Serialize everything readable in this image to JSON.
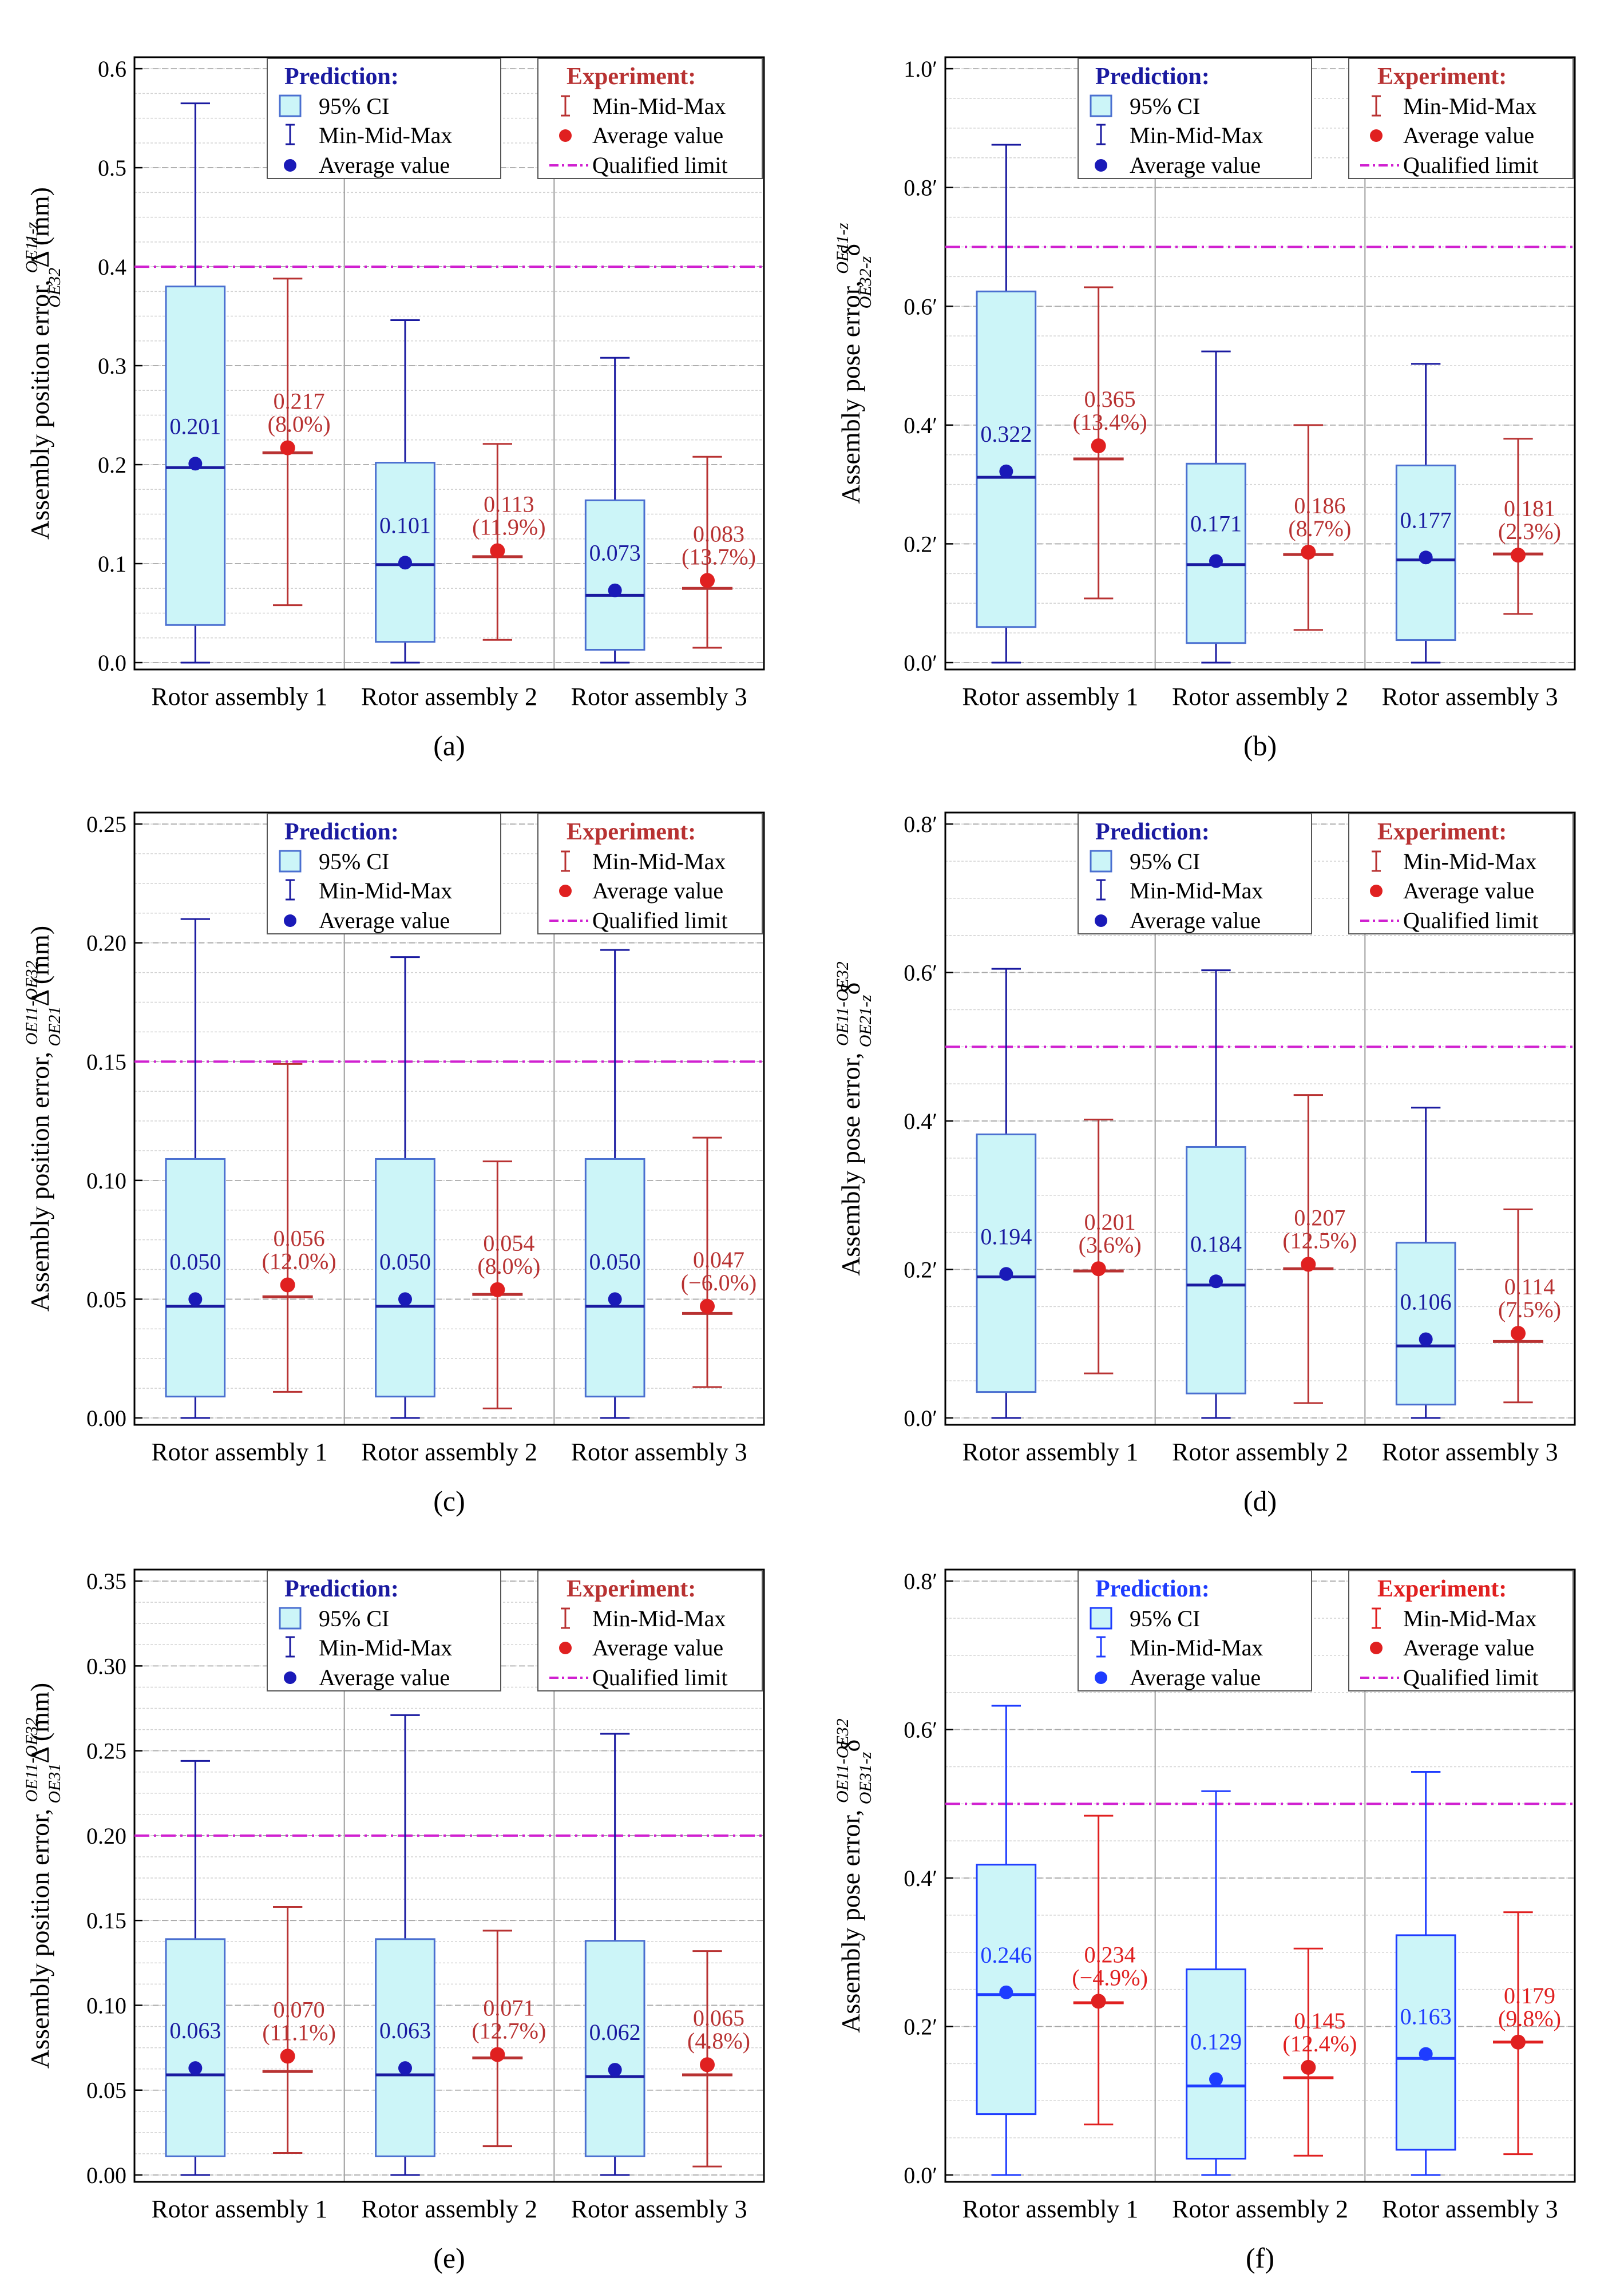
{
  "colors": {
    "pred": "#1a1aa0",
    "pred_box_fill": "#ccf5f8",
    "pred_box_stroke": "#4a6fd0",
    "pred_avg": "#1a1ab8",
    "exp": "#b83232",
    "exp_avg": "#e02020",
    "limit": "#d020d0",
    "pred_f": "#1e3cff",
    "exp_f": "#e02020"
  },
  "legend": {
    "prediction_title": "Prediction:",
    "experiment_title": "Experiment:",
    "ci": "95% CI",
    "minmidmax": "Min-Mid-Max",
    "average": "Average value",
    "limit": "Qualified limit"
  },
  "chart_data": [
    {
      "panel": "(a)",
      "type": "box",
      "ylabel_main": "Assembly position error,",
      "ylabel_sym": "Δ",
      "ylabel_sup": "OE11-z",
      "ylabel_sub": "OE32",
      "ylabel_unit": "(mm)",
      "ylim": [
        0,
        0.6
      ],
      "ytick_step": 0.1,
      "ytick_decimals": 1,
      "yminor_step": 0.025,
      "prime": false,
      "limit": 0.4,
      "categories": [
        "Rotor assembly 1",
        "Rotor assembly 2",
        "Rotor assembly 3"
      ],
      "prediction": [
        {
          "min": 0.0,
          "q1": 0.038,
          "mid": 0.197,
          "q3": 0.38,
          "max": 0.565,
          "avg": 0.201,
          "label": "0.201"
        },
        {
          "min": 0.0,
          "q1": 0.021,
          "mid": 0.099,
          "q3": 0.202,
          "max": 0.346,
          "avg": 0.101,
          "label": "0.101"
        },
        {
          "min": 0.0,
          "q1": 0.013,
          "mid": 0.068,
          "q3": 0.164,
          "max": 0.308,
          "avg": 0.073,
          "label": "0.073"
        }
      ],
      "experiment": [
        {
          "min": 0.058,
          "mid": 0.212,
          "max": 0.388,
          "avg": 0.217,
          "label": "0.217",
          "pct": "(8.0%)"
        },
        {
          "min": 0.023,
          "mid": 0.107,
          "max": 0.221,
          "avg": 0.113,
          "label": "0.113",
          "pct": "(11.9%)"
        },
        {
          "min": 0.015,
          "mid": 0.075,
          "max": 0.208,
          "avg": 0.083,
          "label": "0.083",
          "pct": "(13.7%)"
        }
      ]
    },
    {
      "panel": "(b)",
      "type": "box",
      "ylabel_main": "Assembly pose error,",
      "ylabel_sym": "δ",
      "ylabel_sup": "OE11-z",
      "ylabel_sub": "OE32-z",
      "ylabel_unit": "",
      "ylim": [
        0,
        1.0
      ],
      "ytick_step": 0.2,
      "ytick_decimals": 1,
      "yminor_step": 0.05,
      "prime": true,
      "limit": 0.7,
      "categories": [
        "Rotor assembly 1",
        "Rotor assembly 2",
        "Rotor assembly 3"
      ],
      "prediction": [
        {
          "min": 0.0,
          "q1": 0.06,
          "mid": 0.312,
          "q3": 0.625,
          "max": 0.872,
          "avg": 0.322,
          "label": "0.322"
        },
        {
          "min": 0.0,
          "q1": 0.033,
          "mid": 0.165,
          "q3": 0.335,
          "max": 0.524,
          "avg": 0.171,
          "label": "0.171"
        },
        {
          "min": 0.0,
          "q1": 0.038,
          "mid": 0.173,
          "q3": 0.332,
          "max": 0.503,
          "avg": 0.177,
          "label": "0.177"
        }
      ],
      "experiment": [
        {
          "min": 0.108,
          "mid": 0.343,
          "max": 0.632,
          "avg": 0.365,
          "label": "0.365",
          "pct": "(13.4%)"
        },
        {
          "min": 0.055,
          "mid": 0.182,
          "max": 0.4,
          "avg": 0.186,
          "label": "0.186",
          "pct": "(8.7%)"
        },
        {
          "min": 0.082,
          "mid": 0.183,
          "max": 0.377,
          "avg": 0.181,
          "label": "0.181",
          "pct": "(2.3%)"
        }
      ]
    },
    {
      "panel": "(c)",
      "type": "box",
      "ylabel_main": "Assembly position error,",
      "ylabel_sym": "Δ",
      "ylabel_sup": "OE11-OE32",
      "ylabel_sub": "OE21",
      "ylabel_unit": "(mm)",
      "ylim": [
        0,
        0.25
      ],
      "ytick_step": 0.05,
      "ytick_decimals": 2,
      "yminor_step": 0.0125,
      "prime": false,
      "limit": 0.15,
      "categories": [
        "Rotor assembly 1",
        "Rotor assembly 2",
        "Rotor assembly 3"
      ],
      "prediction": [
        {
          "min": 0.0,
          "q1": 0.009,
          "mid": 0.047,
          "q3": 0.109,
          "max": 0.21,
          "avg": 0.05,
          "label": "0.050"
        },
        {
          "min": 0.0,
          "q1": 0.009,
          "mid": 0.047,
          "q3": 0.109,
          "max": 0.194,
          "avg": 0.05,
          "label": "0.050"
        },
        {
          "min": 0.0,
          "q1": 0.009,
          "mid": 0.047,
          "q3": 0.109,
          "max": 0.197,
          "avg": 0.05,
          "label": "0.050"
        }
      ],
      "experiment": [
        {
          "min": 0.011,
          "mid": 0.051,
          "max": 0.149,
          "avg": 0.056,
          "label": "0.056",
          "pct": "(12.0%)"
        },
        {
          "min": 0.004,
          "mid": 0.052,
          "max": 0.108,
          "avg": 0.054,
          "label": "0.054",
          "pct": "(8.0%)"
        },
        {
          "min": 0.013,
          "mid": 0.044,
          "max": 0.118,
          "avg": 0.047,
          "label": "0.047",
          "pct": "(−6.0%)"
        }
      ]
    },
    {
      "panel": "(d)",
      "type": "box",
      "ylabel_main": "Assembly pose error,",
      "ylabel_sym": "δ",
      "ylabel_sup": "OE11-OE32",
      "ylabel_sub": "OE21-z",
      "ylabel_unit": "",
      "ylim": [
        0,
        0.8
      ],
      "ytick_step": 0.2,
      "ytick_decimals": 1,
      "yminor_step": 0.05,
      "prime": true,
      "limit": 0.5,
      "categories": [
        "Rotor assembly 1",
        "Rotor assembly 2",
        "Rotor assembly 3"
      ],
      "prediction": [
        {
          "min": 0.0,
          "q1": 0.035,
          "mid": 0.19,
          "q3": 0.382,
          "max": 0.605,
          "avg": 0.194,
          "label": "0.194"
        },
        {
          "min": 0.0,
          "q1": 0.033,
          "mid": 0.179,
          "q3": 0.365,
          "max": 0.603,
          "avg": 0.184,
          "label": "0.184"
        },
        {
          "min": 0.0,
          "q1": 0.018,
          "mid": 0.097,
          "q3": 0.236,
          "max": 0.418,
          "avg": 0.106,
          "label": "0.106"
        }
      ],
      "experiment": [
        {
          "min": 0.06,
          "mid": 0.198,
          "max": 0.402,
          "avg": 0.201,
          "label": "0.201",
          "pct": "(3.6%)"
        },
        {
          "min": 0.02,
          "mid": 0.201,
          "max": 0.435,
          "avg": 0.207,
          "label": "0.207",
          "pct": "(12.5%)"
        },
        {
          "min": 0.021,
          "mid": 0.103,
          "max": 0.281,
          "avg": 0.114,
          "label": "0.114",
          "pct": "(7.5%)"
        }
      ]
    },
    {
      "panel": "(e)",
      "type": "box",
      "ylabel_main": "Assembly position error,",
      "ylabel_sym": "Δ",
      "ylabel_sup": "OE11-OE32",
      "ylabel_sub": "OE31",
      "ylabel_unit": "(mm)",
      "ylim": [
        0,
        0.35
      ],
      "ytick_step": 0.05,
      "ytick_decimals": 2,
      "yminor_step": 0.0125,
      "prime": false,
      "limit": 0.2,
      "categories": [
        "Rotor assembly 1",
        "Rotor assembly 2",
        "Rotor assembly 3"
      ],
      "prediction": [
        {
          "min": 0.0,
          "q1": 0.011,
          "mid": 0.059,
          "q3": 0.139,
          "max": 0.244,
          "avg": 0.063,
          "label": "0.063"
        },
        {
          "min": 0.0,
          "q1": 0.011,
          "mid": 0.059,
          "q3": 0.139,
          "max": 0.271,
          "avg": 0.063,
          "label": "0.063"
        },
        {
          "min": 0.0,
          "q1": 0.011,
          "mid": 0.058,
          "q3": 0.138,
          "max": 0.26,
          "avg": 0.062,
          "label": "0.062"
        }
      ],
      "experiment": [
        {
          "min": 0.013,
          "mid": 0.061,
          "max": 0.158,
          "avg": 0.07,
          "label": "0.070",
          "pct": "(11.1%)"
        },
        {
          "min": 0.017,
          "mid": 0.069,
          "max": 0.144,
          "avg": 0.071,
          "label": "0.071",
          "pct": "(12.7%)"
        },
        {
          "min": 0.005,
          "mid": 0.059,
          "max": 0.132,
          "avg": 0.065,
          "label": "0.065",
          "pct": "(4.8%)"
        }
      ]
    },
    {
      "panel": "(f)",
      "type": "box",
      "ylabel_main": "Assembly pose error,",
      "ylabel_sym": "δ",
      "ylabel_sup": "OE11-OE32",
      "ylabel_sub": "OE31-z",
      "ylabel_unit": "",
      "ylim": [
        0,
        0.8
      ],
      "ytick_step": 0.2,
      "ytick_decimals": 1,
      "yminor_step": 0.05,
      "prime": true,
      "limit": 0.5,
      "categories": [
        "Rotor assembly 1",
        "Rotor assembly 2",
        "Rotor assembly 3"
      ],
      "prediction": [
        {
          "min": 0.0,
          "q1": 0.082,
          "mid": 0.243,
          "q3": 0.418,
          "max": 0.632,
          "avg": 0.246,
          "label": "0.246"
        },
        {
          "min": 0.0,
          "q1": 0.022,
          "mid": 0.12,
          "q3": 0.277,
          "max": 0.517,
          "avg": 0.129,
          "label": "0.129"
        },
        {
          "min": 0.0,
          "q1": 0.034,
          "mid": 0.157,
          "q3": 0.323,
          "max": 0.543,
          "avg": 0.163,
          "label": "0.163"
        }
      ],
      "experiment": [
        {
          "min": 0.068,
          "mid": 0.232,
          "max": 0.484,
          "avg": 0.234,
          "label": "0.234",
          "pct": "(−4.9%)"
        },
        {
          "min": 0.026,
          "mid": 0.131,
          "max": 0.305,
          "avg": 0.145,
          "label": "0.145",
          "pct": "(12.4%)"
        },
        {
          "min": 0.028,
          "mid": 0.179,
          "max": 0.354,
          "avg": 0.179,
          "label": "0.179",
          "pct": "(9.8%)"
        }
      ]
    }
  ]
}
